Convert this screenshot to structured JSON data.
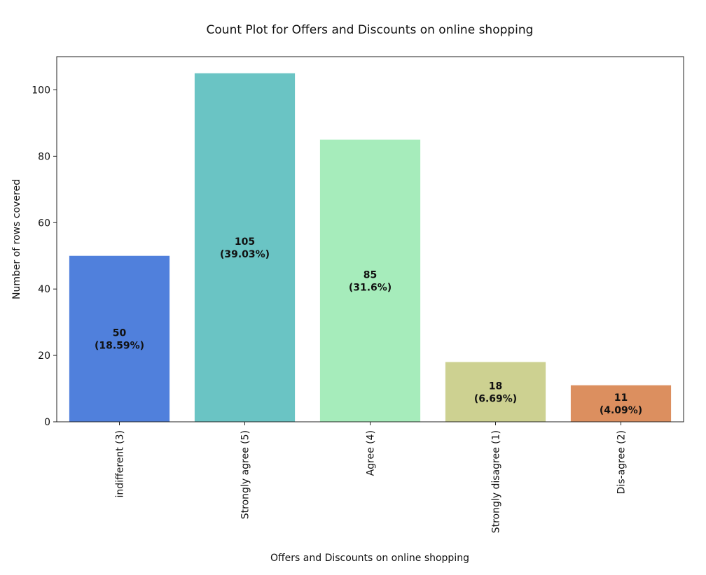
{
  "chart_data": {
    "type": "bar",
    "title": "Count Plot for Offers and Discounts on online shopping",
    "xlabel": "Offers and Discounts on online shopping",
    "ylabel": "Number of rows covered",
    "categories": [
      "indifferent (3)",
      "Strongly agree (5)",
      "Agree (4)",
      "Strongly disagree (1)",
      "Dis-agree (2)"
    ],
    "values": [
      50,
      105,
      85,
      18,
      11
    ],
    "value_labels": [
      "50",
      "105",
      "85",
      "18",
      "11"
    ],
    "percent_labels": [
      "(18.59%)",
      "(39.03%)",
      "(31.6%)",
      "(6.69%)",
      "(4.09%)"
    ],
    "colors": [
      "#5080dc",
      "#6ac4c4",
      "#a6ecbb",
      "#cdd191",
      "#dc8f5f"
    ],
    "ylim": [
      0,
      110
    ],
    "yticks": [
      0,
      20,
      40,
      60,
      80,
      100
    ],
    "ytick_labels": [
      "0",
      "20",
      "40",
      "60",
      "80",
      "100"
    ],
    "grid": false,
    "legend": "none"
  }
}
